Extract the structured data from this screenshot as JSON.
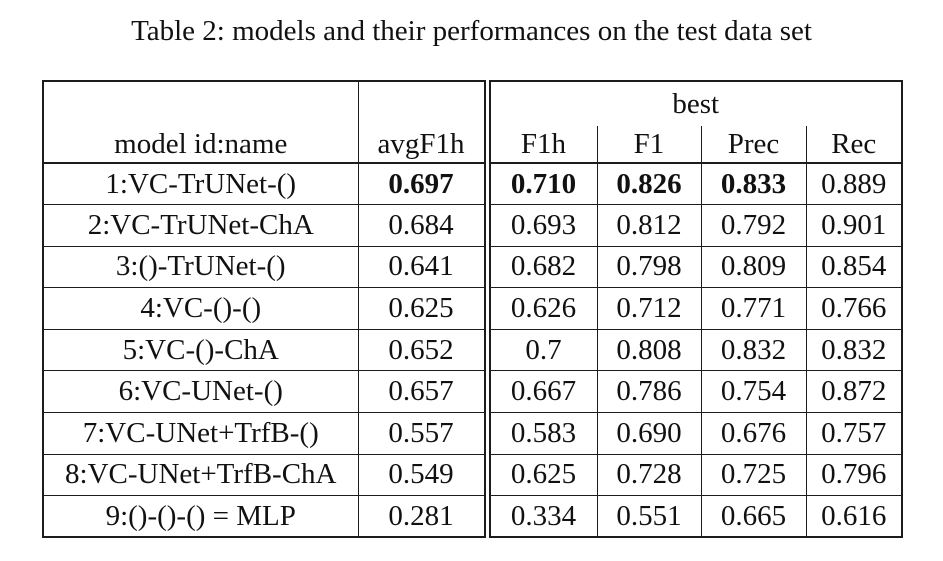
{
  "title": "Table 2: models and their performances on the test data set",
  "table": {
    "group_header": "best",
    "columns": [
      "model id:name",
      "avgF1h",
      "F1h",
      "F1",
      "Prec",
      "Rec"
    ],
    "rows": [
      {
        "cells": [
          "1:VC-TrUNet-()",
          "0.697",
          "0.710",
          "0.826",
          "0.833",
          "0.889"
        ],
        "bold": [
          1,
          2,
          3,
          4
        ]
      },
      {
        "cells": [
          "2:VC-TrUNet-ChA",
          "0.684",
          "0.693",
          "0.812",
          "0.792",
          "0.901"
        ],
        "bold": []
      },
      {
        "cells": [
          "3:()-TrUNet-()",
          "0.641",
          "0.682",
          "0.798",
          "0.809",
          "0.854"
        ],
        "bold": []
      },
      {
        "cells": [
          "4:VC-()-()",
          "0.625",
          "0.626",
          "0.712",
          "0.771",
          "0.766"
        ],
        "bold": []
      },
      {
        "cells": [
          "5:VC-()-ChA",
          "0.652",
          "0.7",
          "0.808",
          "0.832",
          "0.832"
        ],
        "bold": []
      },
      {
        "cells": [
          "6:VC-UNet-()",
          "0.657",
          "0.667",
          "0.786",
          "0.754",
          "0.872"
        ],
        "bold": []
      },
      {
        "cells": [
          "7:VC-UNet+TrfB-()",
          "0.557",
          "0.583",
          "0.690",
          "0.676",
          "0.757"
        ],
        "bold": []
      },
      {
        "cells": [
          "8:VC-UNet+TrfB-ChA",
          "0.549",
          "0.625",
          "0.728",
          "0.725",
          "0.796"
        ],
        "bold": []
      },
      {
        "cells": [
          "9:()-()-() = MLP",
          "0.281",
          "0.334",
          "0.551",
          "0.665",
          "0.616"
        ],
        "bold": []
      }
    ]
  },
  "colors": {
    "background": "#ffffff",
    "text": "#111111",
    "border": "#1c1c1c"
  }
}
